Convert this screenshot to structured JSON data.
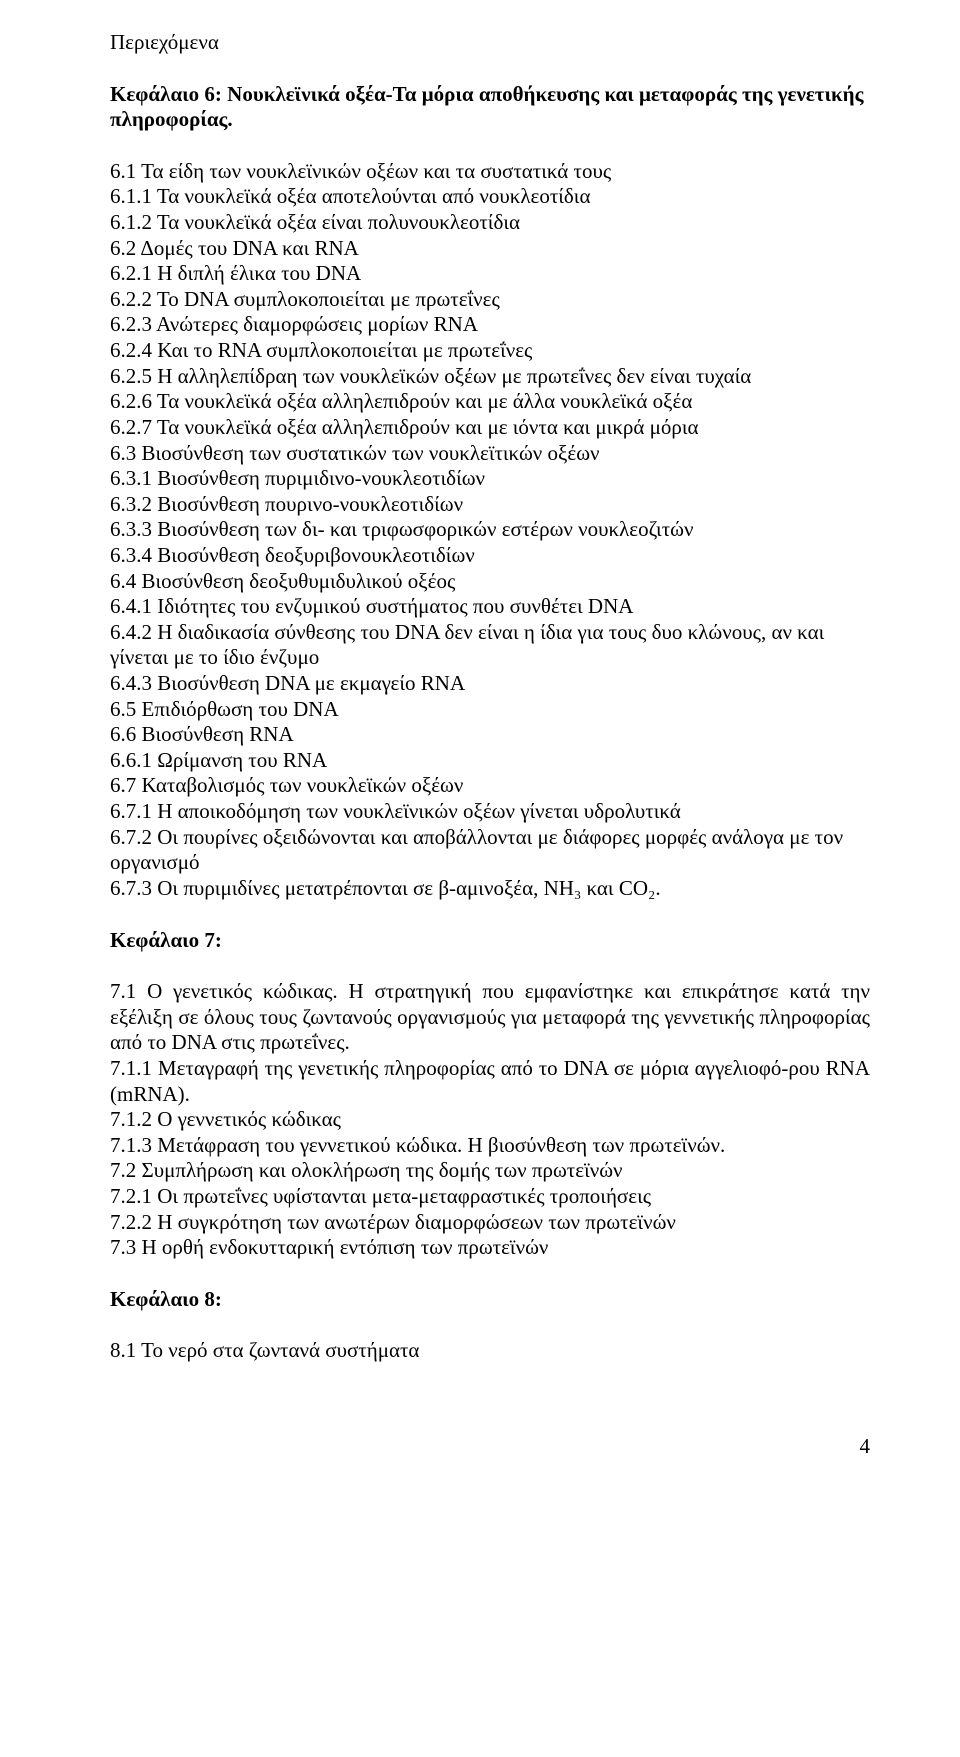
{
  "toc_heading": "Περιεχόμενα",
  "chapter6": {
    "title": "Κεφάλαιο 6: Νουκλεϊνικά οξέα-Τα μόρια αποθήκευσης και μεταφοράς της γενετικής πληροφορίας.",
    "lines": [
      "6.1 Τα είδη των νουκλεϊνικών οξέων και τα συστατικά τους",
      "6.1.1 Τα νουκλεϊκά οξέα αποτελούνται από νουκλεοτίδια",
      "6.1.2 Τα νουκλεϊκά οξέα είναι πολυνουκλεοτίδια",
      "6.2 Δομές του DNA και RNA",
      "6.2.1 Η διπλή έλικα του DNA",
      "6.2.2 Το DNA συμπλοκοποιείται με πρωτεΐνες",
      "6.2.3 Ανώτερες διαμορφώσεις μορίων RNA",
      "6.2.4 Και το RNA συμπλοκοποιείται με πρωτεΐνες",
      "6.2.5 Η αλληλεπίδραη των νουκλεϊκών οξέων με πρωτεΐνες δεν είναι τυχαία",
      "6.2.6 Τα νουκλεϊκά οξέα αλληλεπιδρούν και με άλλα νουκλεϊκά οξέα",
      "6.2.7 Τα νουκλεϊκά οξέα αλληλεπιδρούν και με ιόντα και μικρά μόρια",
      "6.3 Βιοσύνθεση των συστατικών των νουκλεϊτικών οξέων",
      "6.3.1 Βιοσύνθεση πυριμιδινο-νουκλεοτιδίων",
      "6.3.2 Βιοσύνθεση πουρινο-νουκλεοτιδίων",
      "6.3.3 Βιοσύνθεση των δι- και τριφωσφορικών εστέρων νουκλεοζιτών",
      "6.3.4 Βιοσύνθεση δεοξυριβονουκλεοτιδίων",
      "6.4 Βιοσύνθεση δεοξυθυμιδυλικού οξέος",
      "6.4.1 Ιδιότητες του ενζυμικού συστήματος που συνθέτει DNA",
      "6.4.2 Η διαδικασία σύνθεσης του DNA δεν είναι η ίδια για τους δυο κλώνους, αν και γίνεται με το ίδιο ένζυμο",
      "6.4.3 Βιοσύνθεση DNA με εκμαγείο RNA",
      "6.5 Επιδιόρθωση του DNA",
      "6.6 Βιοσύνθεση RNA",
      "6.6.1 Ωρίμανση του RNA",
      "6.7 Καταβολισμός των νουκλεϊκών οξέων",
      "6.7.1 Η αποικοδόμηση των νουκλεϊνικών οξέων γίνεται υδρολυτικά",
      "6.7.2 Οι πουρίνες οξειδώνονται και αποβάλλονται με διάφορες μορφές ανάλογα με τον οργανισμό",
      "6.7.3 Οι πυριμιδίνες μετατρέπονται σε β-αμινοξέα, NH₃ και CO₂."
    ]
  },
  "chapter7": {
    "title": "Κεφάλαιο 7:",
    "lines": [
      "7.1 Ο γενετικός κώδικας. Η στρατηγική που εμφανίστηκε και επικράτησε κατά την εξέλιξη σε όλους τους ζωντανούς οργανισμούς για μεταφορά της γεννετικής πληροφορίας από το DNA στις πρωτεΐνες.",
      "7.1.1 Μεταγραφή της γενετικής πληροφορίας από το DNA σε μόρια αγγελιοφό-ρου RNA (mRNA).",
      "7.1.2 Ο γεννετικός κώδικας",
      "7.1.3 Μετάφραση του γεννετικού κώδικα. Η βιοσύνθεση των πρωτεϊνών.",
      "7.2 Συμπλήρωση και ολοκλήρωση της δομής των πρωτεϊνών",
      "7.2.1 Οι πρωτεΐνες υφίστανται μετα-μεταφραστικές τροποιήσεις",
      "7.2.2 Η συγκρότηση των ανωτέρων διαμορφώσεων των πρωτεϊνών",
      "7.3 Η ορθή ενδοκυτταρική εντόπιση των πρωτεϊνών"
    ]
  },
  "chapter8": {
    "title": "Κεφάλαιο 8:",
    "lines": [
      "8.1 Το νερό στα ζωντανά συστήματα"
    ]
  },
  "page_number": "4",
  "justified_indices_ch7": [
    0,
    1
  ]
}
